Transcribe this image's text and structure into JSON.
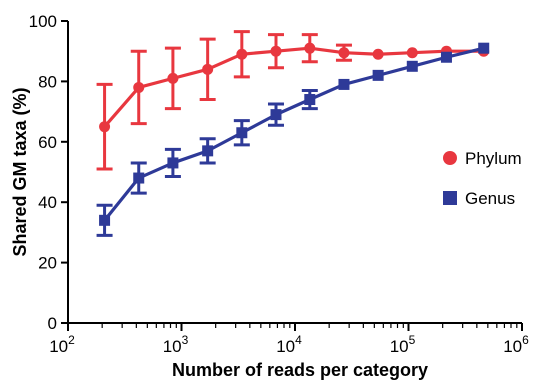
{
  "chart_data": {
    "type": "line",
    "xscale": "log",
    "xlim": [
      100,
      1000000
    ],
    "ylim": [
      0,
      100
    ],
    "xlabel": "Number of reads per category",
    "ylabel": "Shared GM taxa (%)",
    "x_ticks": [
      {
        "base": "10",
        "exp": "2",
        "value": 100
      },
      {
        "base": "10",
        "exp": "3",
        "value": 1000
      },
      {
        "base": "10",
        "exp": "4",
        "value": 10000
      },
      {
        "base": "10",
        "exp": "5",
        "value": 100000
      },
      {
        "base": "10",
        "exp": "6",
        "value": 1000000
      }
    ],
    "y_ticks": [
      "0",
      "20",
      "40",
      "60",
      "80",
      "100"
    ],
    "legend_position": "right",
    "series": [
      {
        "name": "Phylum",
        "color": "#e8373f",
        "marker": "circle",
        "points": [
          {
            "x": 210,
            "y": 65,
            "err": 14
          },
          {
            "x": 420,
            "y": 78,
            "err": 12
          },
          {
            "x": 840,
            "y": 81,
            "err": 10
          },
          {
            "x": 1700,
            "y": 84,
            "err": 10
          },
          {
            "x": 3400,
            "y": 89,
            "err": 7.5
          },
          {
            "x": 6800,
            "y": 90,
            "err": 5.5
          },
          {
            "x": 13500,
            "y": 91,
            "err": 4.5
          },
          {
            "x": 27000,
            "y": 89.5,
            "err": 2.5
          },
          {
            "x": 54000,
            "y": 89,
            "err": 0.5
          },
          {
            "x": 108000,
            "y": 89.5,
            "err": 0.5
          },
          {
            "x": 216000,
            "y": 90,
            "err": 0.5
          },
          {
            "x": 460000,
            "y": 90,
            "err": 0.5
          }
        ]
      },
      {
        "name": "Genus",
        "color": "#2e3a98",
        "marker": "square",
        "points": [
          {
            "x": 210,
            "y": 34,
            "err": 5
          },
          {
            "x": 420,
            "y": 48,
            "err": 5
          },
          {
            "x": 840,
            "y": 53,
            "err": 4.5
          },
          {
            "x": 1700,
            "y": 57,
            "err": 4
          },
          {
            "x": 3400,
            "y": 63,
            "err": 4
          },
          {
            "x": 6800,
            "y": 69,
            "err": 3.5
          },
          {
            "x": 13500,
            "y": 74,
            "err": 3
          },
          {
            "x": 27000,
            "y": 79,
            "err": 1
          },
          {
            "x": 54000,
            "y": 82,
            "err": 0.8
          },
          {
            "x": 108000,
            "y": 85,
            "err": 0.8
          },
          {
            "x": 216000,
            "y": 88,
            "err": 0.8
          },
          {
            "x": 460000,
            "y": 91,
            "err": 0.8
          }
        ]
      }
    ]
  }
}
